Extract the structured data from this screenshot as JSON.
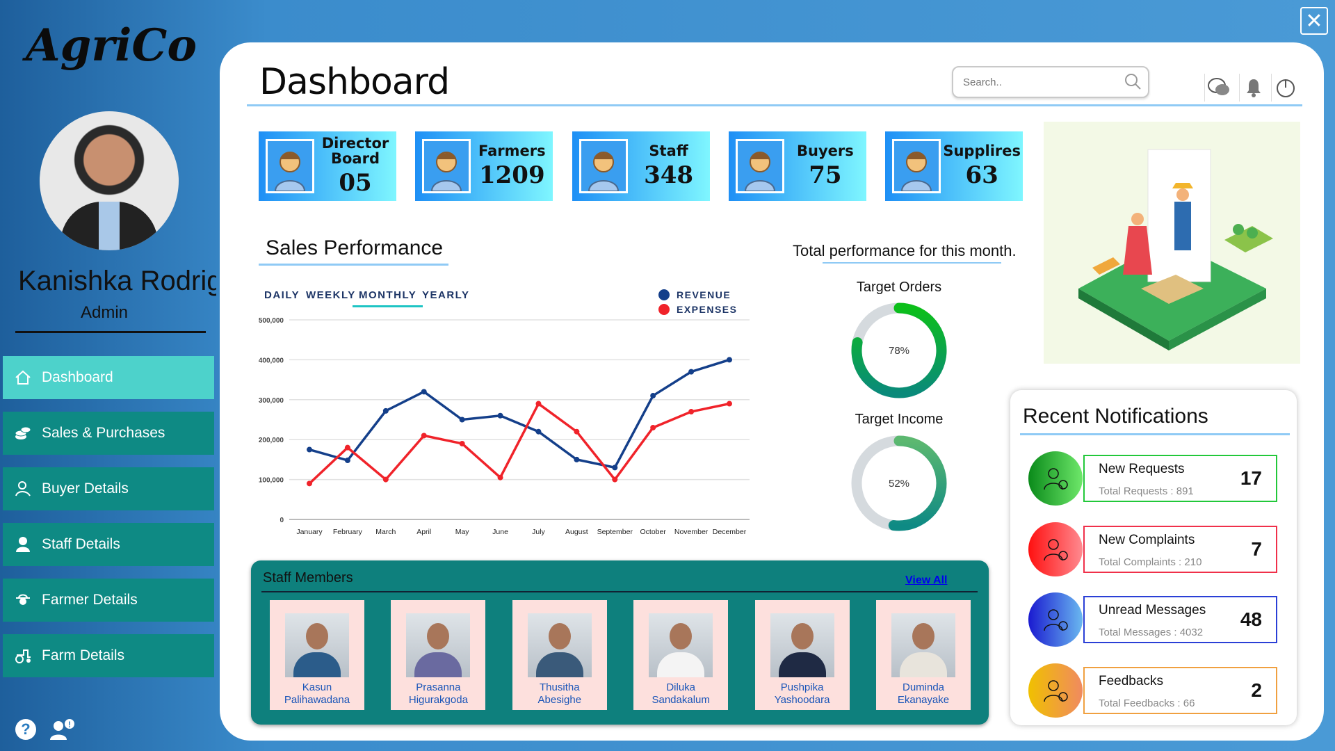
{
  "app": {
    "logo": "AgriCo",
    "close_icon": "close-icon"
  },
  "user": {
    "name": "Kanishka Rodrigo",
    "role": "Admin"
  },
  "sidebar": {
    "items": [
      {
        "label": "Dashboard",
        "icon": "home-icon",
        "active": true
      },
      {
        "label": "Sales & Purchases",
        "icon": "coins-icon"
      },
      {
        "label": "Buyer Details",
        "icon": "buyer-icon"
      },
      {
        "label": "Staff Details",
        "icon": "person-icon"
      },
      {
        "label": "Farmer Details",
        "icon": "farmer-icon"
      },
      {
        "label": "Farm Details",
        "icon": "tractor-icon"
      }
    ]
  },
  "header": {
    "title": "Dashboard",
    "search_placeholder": "Search.."
  },
  "stats": [
    {
      "label": "Director Board",
      "value": "05"
    },
    {
      "label": "Farmers",
      "value": "1209"
    },
    {
      "label": "Staff",
      "value": "348"
    },
    {
      "label": "Buyers",
      "value": "75"
    },
    {
      "label": "Supplires",
      "value": "63"
    }
  ],
  "sales": {
    "title": "Sales Performance",
    "tabs": [
      "DAILY",
      "WEEKLY",
      "MONTHLY",
      "YEARLY"
    ],
    "active_tab": "MONTHLY"
  },
  "chart_data": {
    "type": "line",
    "categories": [
      "January",
      "February",
      "March",
      "April",
      "May",
      "June",
      "July",
      "August",
      "September",
      "October",
      "November",
      "December"
    ],
    "series": [
      {
        "name": "REVENUE",
        "color": "#143f8a",
        "values": [
          175000,
          148000,
          272000,
          320000,
          250000,
          260000,
          220000,
          150000,
          130000,
          310000,
          370000,
          400000
        ]
      },
      {
        "name": "EXPENSES",
        "color": "#f0232a",
        "values": [
          90000,
          180000,
          100000,
          210000,
          190000,
          105000,
          290000,
          220000,
          100000,
          230000,
          270000,
          290000
        ]
      }
    ],
    "yticks": [
      "0",
      "100,000",
      "200,000",
      "300,000",
      "400,000",
      "500,000"
    ],
    "ylim": [
      0,
      500000
    ],
    "legend": "top-right",
    "grid": true
  },
  "performance": {
    "title": "Total performance for this month.",
    "orders_label": "Target Orders",
    "orders_pct": 78,
    "orders_text": "78%",
    "income_label": "Target Income",
    "income_pct": 52,
    "income_text": "52%"
  },
  "staff": {
    "title": "Staff Members",
    "view_all": "View All",
    "members": [
      {
        "first": "Kasun",
        "last": "Palihawadana"
      },
      {
        "first": "Prasanna",
        "last": "Higurakgoda"
      },
      {
        "first": "Thusitha",
        "last": "Abesighe"
      },
      {
        "first": "Diluka",
        "last": "Sandakalum"
      },
      {
        "first": "Pushpika",
        "last": "Yashoodara"
      },
      {
        "first": "Duminda",
        "last": "Ekanayake"
      }
    ]
  },
  "notifications": {
    "title": "Recent Notifications",
    "items": [
      {
        "title": "New Requests",
        "sub": "Total Requests : 891",
        "count": "17",
        "color": "#22c83a"
      },
      {
        "title": "New Complaints",
        "sub": "Total Complaints : 210",
        "count": "7",
        "color": "#f0304a"
      },
      {
        "title": "Unread Messages",
        "sub": "Total Messages : 4032",
        "count": "48",
        "color": "#2a3fd6"
      },
      {
        "title": "Feedbacks",
        "sub": "Total Feedbacks : 66",
        "count": "2",
        "color": "#f0a040"
      }
    ]
  }
}
